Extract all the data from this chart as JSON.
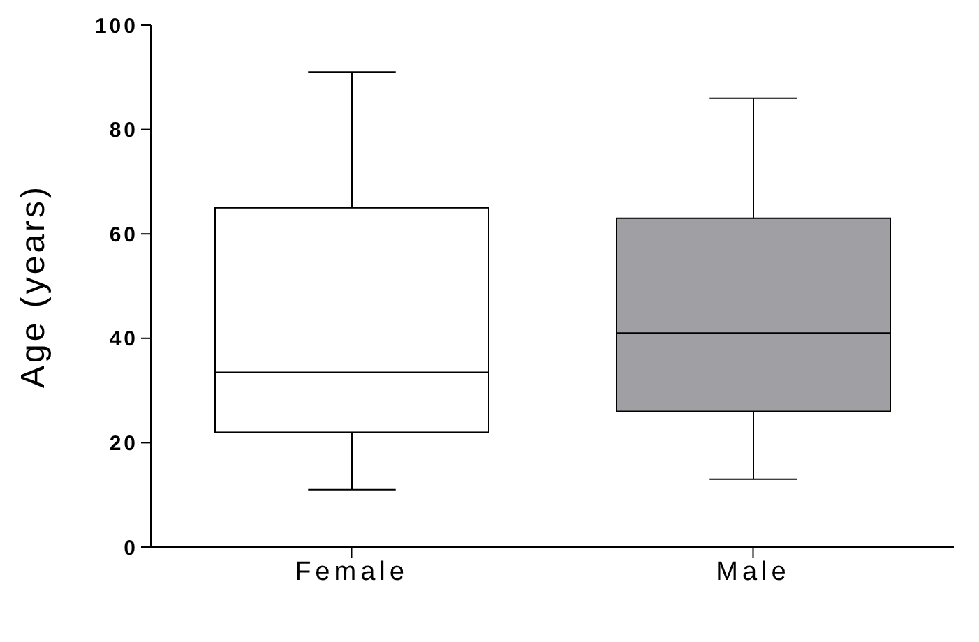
{
  "chart_data": {
    "type": "box",
    "ylabel": "Age (years)",
    "categories": [
      "Female",
      "Male"
    ],
    "boxes": [
      {
        "low": 11,
        "q1": 22,
        "median": 33.5,
        "q3": 65,
        "high": 91
      },
      {
        "low": 13,
        "q1": 26,
        "median": 41,
        "q3": 63,
        "high": 86
      }
    ],
    "colors": [
      "#ffffff",
      "#a0a0a4"
    ],
    "ylim": [
      0,
      100
    ],
    "yticks": [
      0,
      20,
      40,
      60,
      80,
      100
    ],
    "grid": false
  }
}
